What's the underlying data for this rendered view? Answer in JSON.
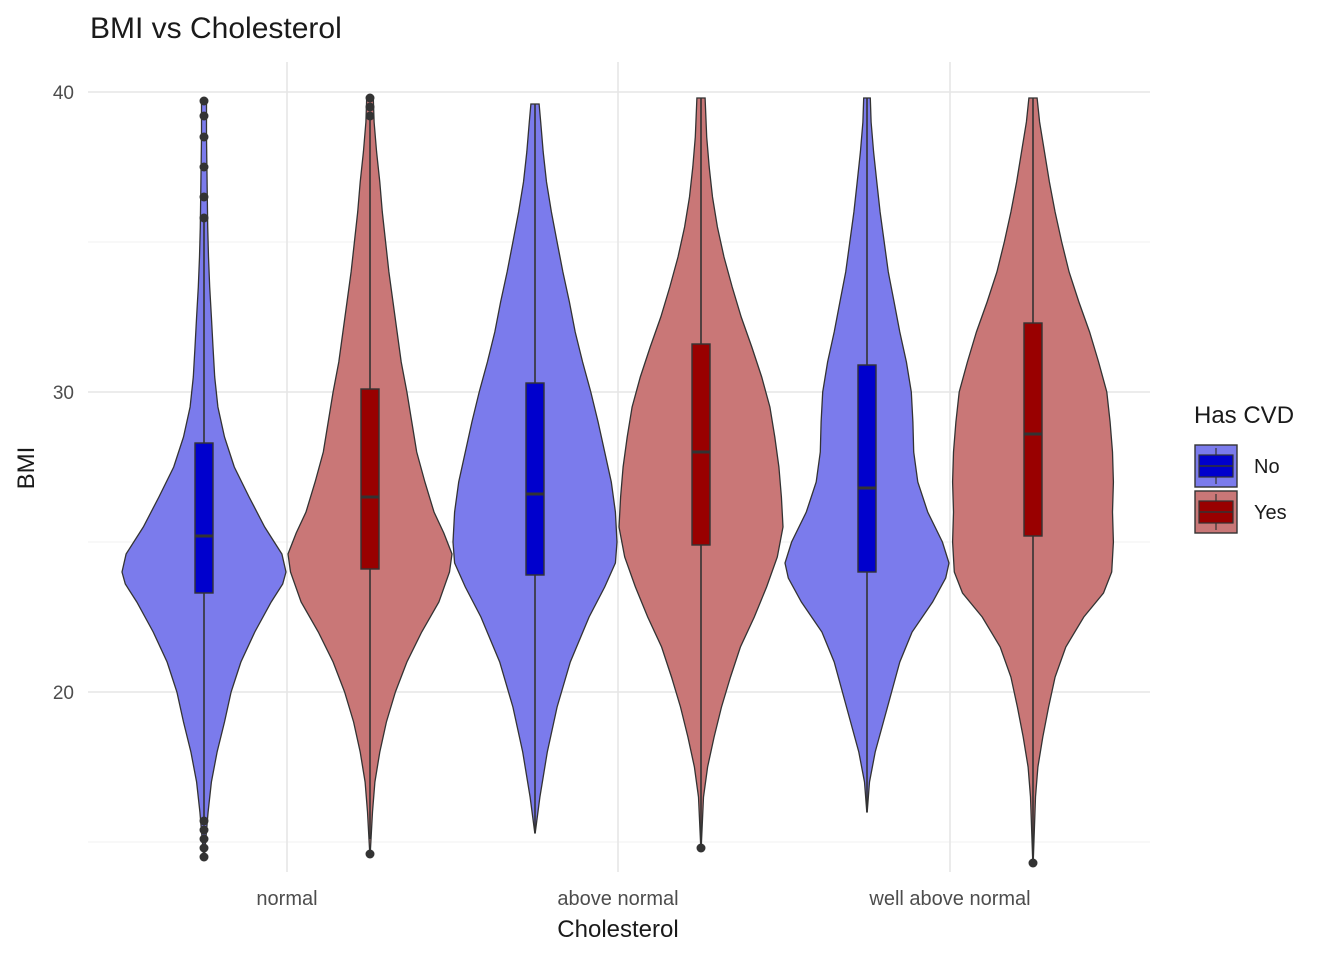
{
  "chart_data": {
    "type": "violin",
    "title": "BMI vs Cholesterol",
    "xlabel": "Cholesterol",
    "ylabel": "BMI",
    "categories": [
      "normal",
      "above normal",
      "well above normal"
    ],
    "y_ticks": [
      20,
      30,
      40
    ],
    "ylim": [
      14,
      41
    ],
    "grid": true,
    "legend": {
      "title": "Has CVD",
      "placement": "right",
      "entries": [
        {
          "label": "No",
          "fill": "#0000CD",
          "violin_fill": "#7B7BEC"
        },
        {
          "label": "Yes",
          "fill": "#990000",
          "violin_fill": "#C97777"
        }
      ]
    },
    "series": [
      {
        "name": "No",
        "groups": [
          {
            "category": "normal",
            "min": 14.5,
            "q1": 23.3,
            "median": 25.2,
            "q3": 28.3,
            "max": 39.7,
            "outliers_high": [
              35.8,
              36.5,
              37.5,
              38.5,
              39.2,
              39.7
            ],
            "outliers_low": [
              14.5,
              14.8,
              15.1,
              15.4,
              15.7
            ],
            "density": [
              [
                14.5,
                0.004
              ],
              [
                16,
                0.05
              ],
              [
                17,
                0.09
              ],
              [
                18,
                0.16
              ],
              [
                19,
                0.25
              ],
              [
                20,
                0.33
              ],
              [
                21,
                0.45
              ],
              [
                22,
                0.62
              ],
              [
                23,
                0.82
              ],
              [
                23.6,
                0.96
              ],
              [
                24,
                1.0
              ],
              [
                24.6,
                0.95
              ],
              [
                25.5,
                0.74
              ],
              [
                26.5,
                0.55
              ],
              [
                27.5,
                0.37
              ],
              [
                28.5,
                0.25
              ],
              [
                29.5,
                0.17
              ],
              [
                30.5,
                0.13
              ],
              [
                31.5,
                0.11
              ],
              [
                32.5,
                0.09
              ],
              [
                33.5,
                0.07
              ],
              [
                34.5,
                0.055
              ],
              [
                35.5,
                0.045
              ],
              [
                36.5,
                0.04
              ],
              [
                37.5,
                0.035
              ],
              [
                38.5,
                0.03
              ],
              [
                39.7,
                0.03
              ]
            ]
          },
          {
            "category": "above normal",
            "min": 15.3,
            "q1": 23.9,
            "median": 26.6,
            "q3": 30.3,
            "max": 39.6,
            "outliers_high": [],
            "outliers_low": [],
            "density": [
              [
                15.3,
                0.003
              ],
              [
                16.5,
                0.06
              ],
              [
                18,
                0.15
              ],
              [
                19.5,
                0.27
              ],
              [
                21,
                0.43
              ],
              [
                22.5,
                0.66
              ],
              [
                23.5,
                0.85
              ],
              [
                24.3,
                0.98
              ],
              [
                25,
                1.0
              ],
              [
                26,
                0.98
              ],
              [
                27,
                0.93
              ],
              [
                28,
                0.85
              ],
              [
                29,
                0.77
              ],
              [
                30,
                0.68
              ],
              [
                31,
                0.58
              ],
              [
                32,
                0.49
              ],
              [
                33,
                0.42
              ],
              [
                34,
                0.34
              ],
              [
                35,
                0.27
              ],
              [
                36,
                0.2
              ],
              [
                37,
                0.14
              ],
              [
                38,
                0.1
              ],
              [
                39,
                0.07
              ],
              [
                39.6,
                0.05
              ]
            ]
          },
          {
            "category": "well above normal",
            "min": 16.0,
            "q1": 24.0,
            "median": 26.8,
            "q3": 30.9,
            "max": 39.8,
            "outliers_high": [],
            "outliers_low": [],
            "density": [
              [
                16,
                0.003
              ],
              [
                17,
                0.03
              ],
              [
                18,
                0.1
              ],
              [
                19,
                0.2
              ],
              [
                20,
                0.3
              ],
              [
                21,
                0.4
              ],
              [
                22,
                0.55
              ],
              [
                23,
                0.8
              ],
              [
                23.8,
                0.96
              ],
              [
                24.3,
                1.0
              ],
              [
                25,
                0.92
              ],
              [
                26,
                0.74
              ],
              [
                27,
                0.62
              ],
              [
                28,
                0.57
              ],
              [
                29,
                0.56
              ],
              [
                30,
                0.54
              ],
              [
                31,
                0.48
              ],
              [
                32,
                0.4
              ],
              [
                33,
                0.33
              ],
              [
                34,
                0.26
              ],
              [
                35,
                0.21
              ],
              [
                36,
                0.16
              ],
              [
                37,
                0.12
              ],
              [
                38,
                0.08
              ],
              [
                39,
                0.05
              ],
              [
                39.8,
                0.04
              ]
            ]
          }
        ]
      },
      {
        "name": "Yes",
        "groups": [
          {
            "category": "normal",
            "min": 14.6,
            "q1": 24.1,
            "median": 26.5,
            "q3": 30.1,
            "max": 39.8,
            "outliers_high": [
              39.2,
              39.5,
              39.8
            ],
            "outliers_low": [
              14.6
            ],
            "density": [
              [
                14.6,
                0.003
              ],
              [
                16,
                0.03
              ],
              [
                17,
                0.06
              ],
              [
                18,
                0.12
              ],
              [
                19,
                0.2
              ],
              [
                20,
                0.31
              ],
              [
                21,
                0.45
              ],
              [
                22,
                0.63
              ],
              [
                23,
                0.84
              ],
              [
                24,
                0.97
              ],
              [
                24.6,
                1.0
              ],
              [
                25.3,
                0.9
              ],
              [
                26,
                0.78
              ],
              [
                27,
                0.67
              ],
              [
                28,
                0.57
              ],
              [
                29,
                0.51
              ],
              [
                30,
                0.45
              ],
              [
                31,
                0.38
              ],
              [
                32,
                0.33
              ],
              [
                33,
                0.28
              ],
              [
                34,
                0.23
              ],
              [
                35,
                0.19
              ],
              [
                36,
                0.15
              ],
              [
                37,
                0.12
              ],
              [
                38,
                0.08
              ],
              [
                39,
                0.05
              ],
              [
                39.8,
                0.04
              ]
            ]
          },
          {
            "category": "above normal",
            "min": 14.8,
            "q1": 24.9,
            "median": 28.0,
            "q3": 31.6,
            "max": 39.8,
            "outliers_high": [],
            "outliers_low": [
              14.8
            ],
            "density": [
              [
                14.8,
                0.003
              ],
              [
                16.5,
                0.03
              ],
              [
                17.5,
                0.08
              ],
              [
                18.5,
                0.16
              ],
              [
                19.5,
                0.25
              ],
              [
                20.5,
                0.36
              ],
              [
                21.5,
                0.48
              ],
              [
                22.5,
                0.65
              ],
              [
                23.5,
                0.8
              ],
              [
                24.5,
                0.93
              ],
              [
                25.5,
                1.0
              ],
              [
                26.5,
                0.98
              ],
              [
                27.5,
                0.95
              ],
              [
                28.5,
                0.9
              ],
              [
                29.5,
                0.84
              ],
              [
                30.5,
                0.74
              ],
              [
                31.5,
                0.62
              ],
              [
                32.5,
                0.49
              ],
              [
                33.5,
                0.38
              ],
              [
                34.5,
                0.28
              ],
              [
                35.5,
                0.2
              ],
              [
                36.5,
                0.14
              ],
              [
                37.5,
                0.1
              ],
              [
                38.5,
                0.07
              ],
              [
                39.8,
                0.05
              ]
            ]
          },
          {
            "category": "well above normal",
            "min": 14.3,
            "q1": 25.2,
            "median": 28.6,
            "q3": 32.3,
            "max": 39.8,
            "outliers_high": [],
            "outliers_low": [
              14.3
            ],
            "density": [
              [
                14.3,
                0.003
              ],
              [
                16.5,
                0.03
              ],
              [
                17.5,
                0.06
              ],
              [
                18.5,
                0.12
              ],
              [
                19.5,
                0.19
              ],
              [
                20.5,
                0.27
              ],
              [
                21.5,
                0.4
              ],
              [
                22.5,
                0.62
              ],
              [
                23.3,
                0.86
              ],
              [
                24,
                0.96
              ],
              [
                25,
                0.98
              ],
              [
                26,
                0.97
              ],
              [
                27,
                0.98
              ],
              [
                28,
                0.97
              ],
              [
                29,
                0.94
              ],
              [
                30,
                0.9
              ],
              [
                31,
                0.8
              ],
              [
                32,
                0.69
              ],
              [
                33,
                0.56
              ],
              [
                34,
                0.44
              ],
              [
                35,
                0.35
              ],
              [
                36,
                0.27
              ],
              [
                37,
                0.2
              ],
              [
                38,
                0.14
              ],
              [
                39,
                0.08
              ],
              [
                39.8,
                0.05
              ]
            ]
          }
        ]
      }
    ]
  }
}
